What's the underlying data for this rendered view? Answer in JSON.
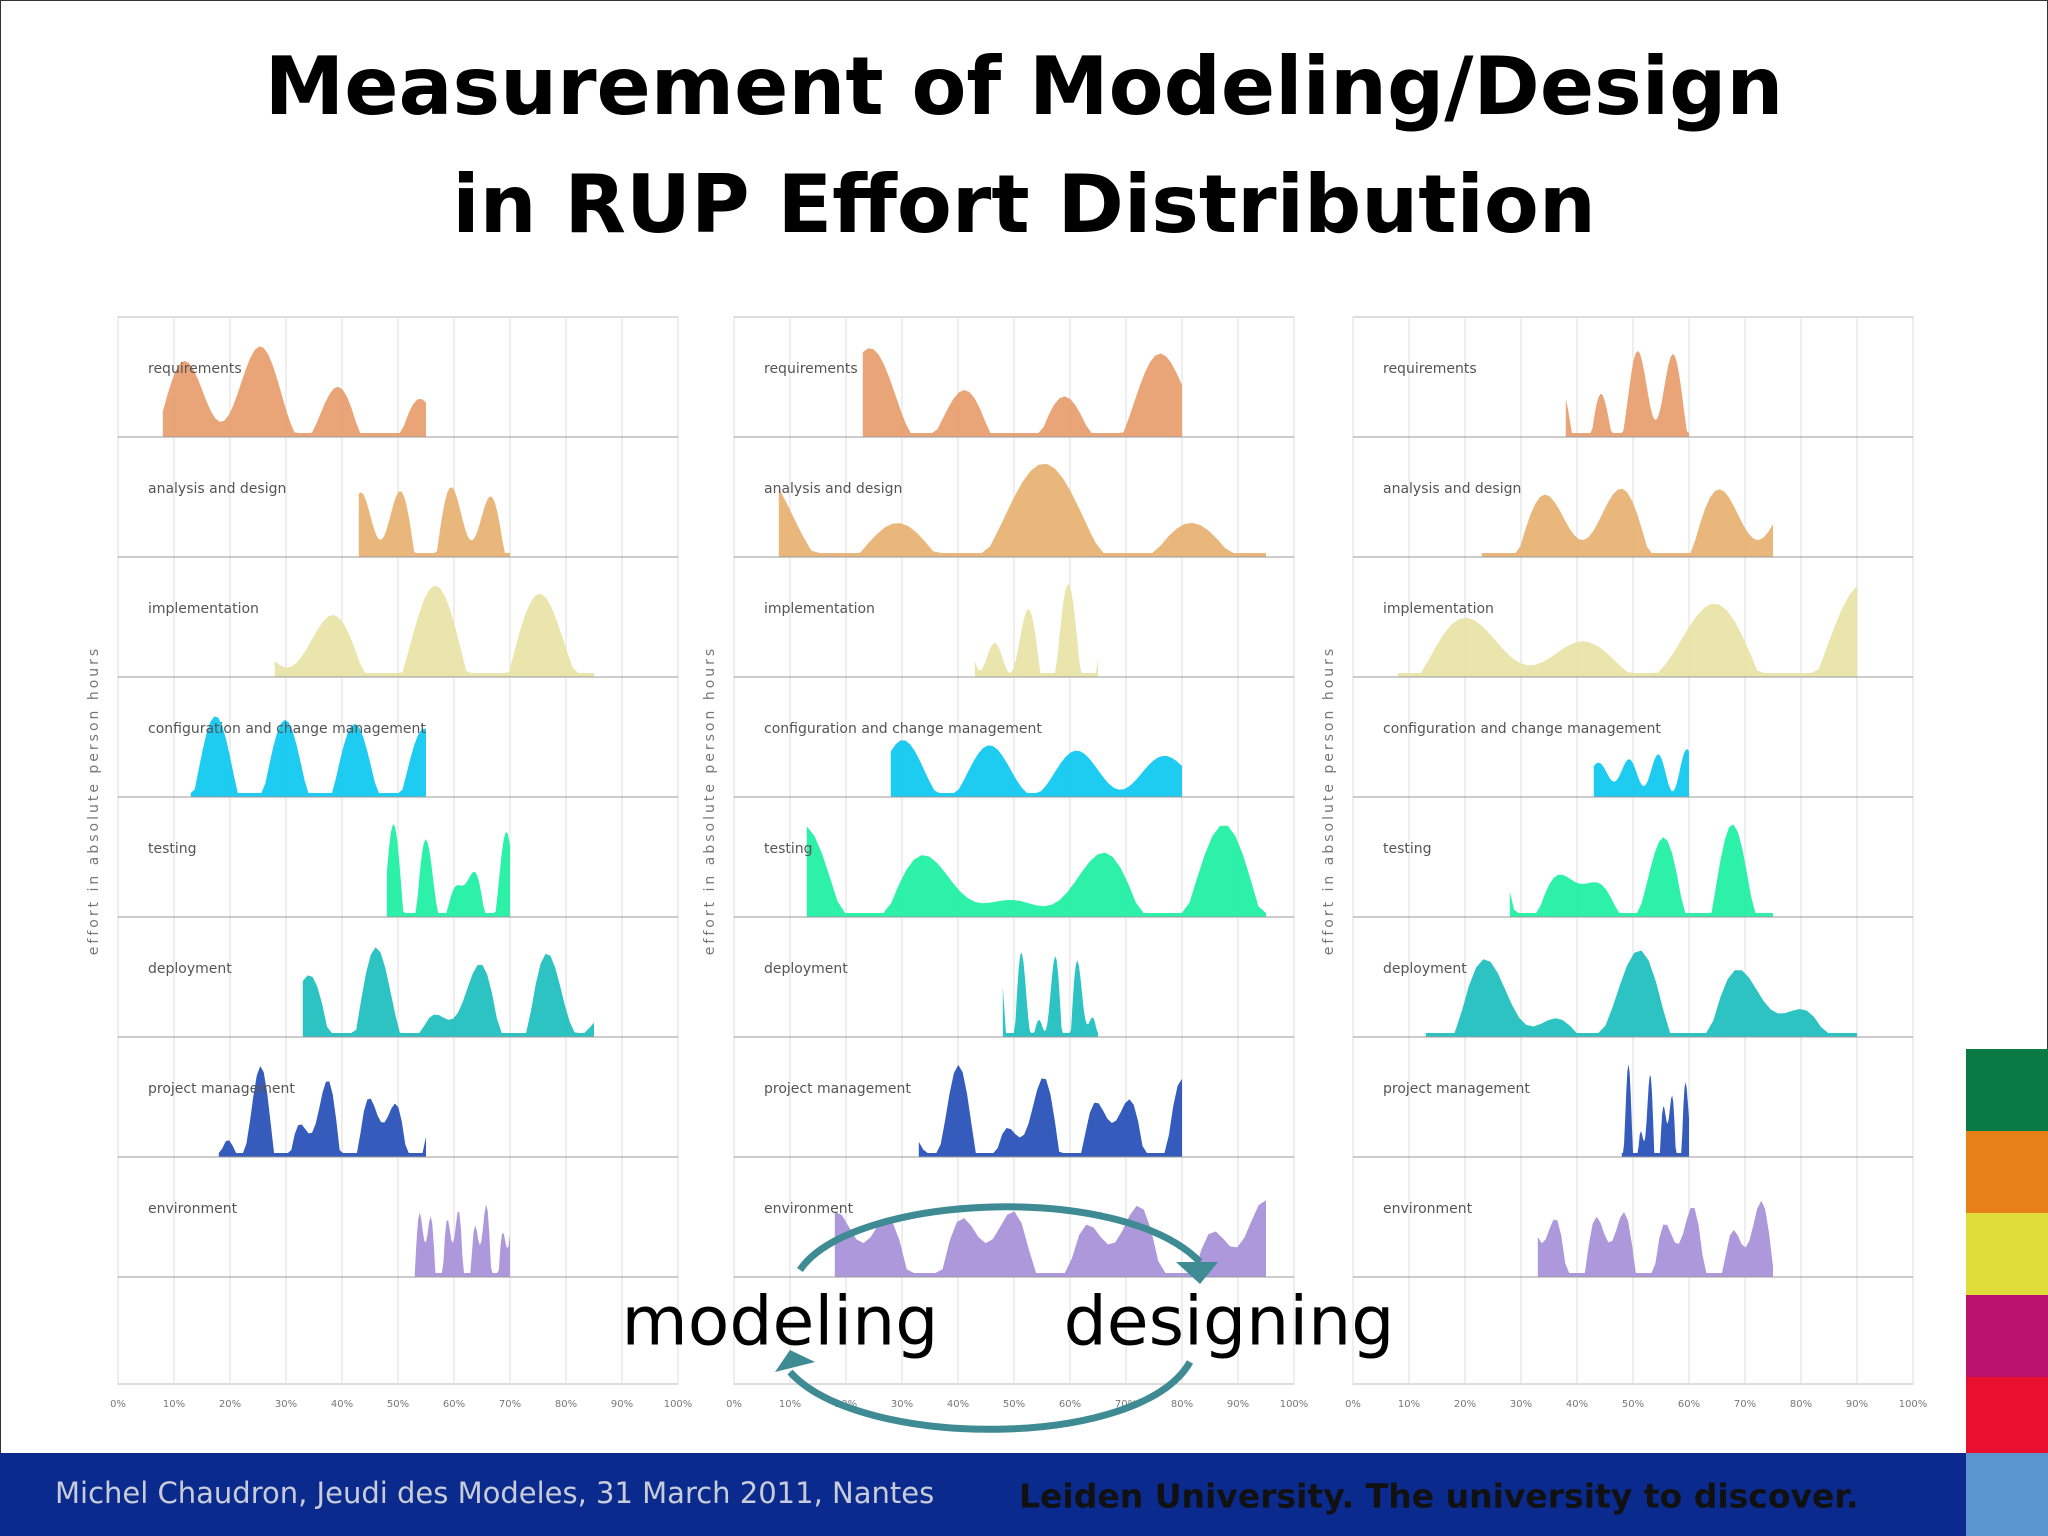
{
  "title": [
    "Measurement of Modeling/Design",
    "in RUP Effort Distribution"
  ],
  "panels": [
    {
      "y_axis_label": "effort in absolute person hours",
      "rows": [
        "requirements",
        "analysis and design",
        "implementation",
        "configuration and change management",
        "testing",
        "deployment",
        "project management",
        "environment"
      ],
      "xticks": [
        "0%",
        "10%",
        "20%",
        "30%",
        "40%",
        "50%",
        "60%",
        "70%",
        "80%",
        "90%",
        "100%"
      ]
    },
    {
      "y_axis_label": "effort in absolute person hours",
      "rows": [
        "requirements",
        "analysis and design",
        "implementation",
        "configuration and change management",
        "testing",
        "deployment",
        "project management",
        "environment"
      ],
      "xticks": [
        "0%",
        "10%",
        "20%",
        "30%",
        "40%",
        "50%",
        "60%",
        "70%",
        "80%",
        "90%",
        "100%"
      ]
    },
    {
      "y_axis_label": "effort in absolute person hours",
      "rows": [
        "requirements",
        "analysis and design",
        "implementation",
        "configuration and change management",
        "testing",
        "deployment",
        "project management",
        "environment"
      ],
      "xticks": [
        "0%",
        "10%",
        "20%",
        "30%",
        "40%",
        "50%",
        "60%",
        "70%",
        "80%",
        "90%",
        "100%"
      ]
    }
  ],
  "cycle": {
    "left": "modeling",
    "right": "designing"
  },
  "footer": {
    "left": "Michel Chaudron, Jeudi des Modeles, 31 March 2011, Nantes",
    "right": "Leiden University. The university to discover."
  }
}
